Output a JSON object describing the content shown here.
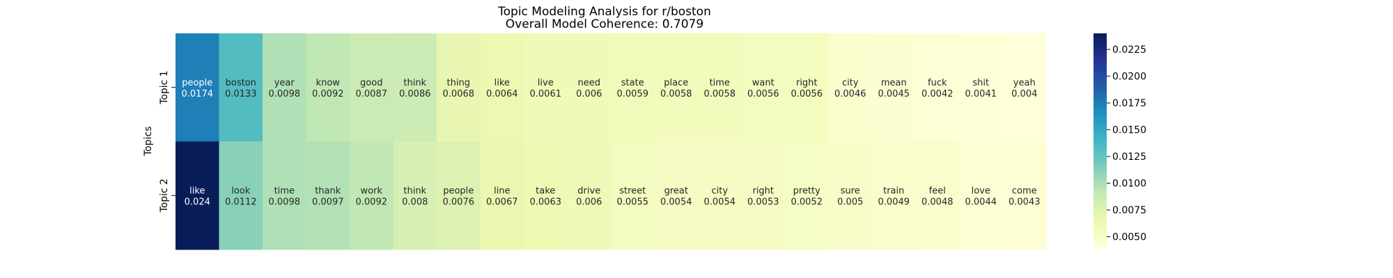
{
  "chart_data": {
    "type": "heatmap",
    "title_line1": "Topic Modeling Analysis for r/boston",
    "title_line2": "Overall Model Coherence: 0.7079",
    "ylabel": "Topics",
    "xlabel": "",
    "row_labels": [
      "Topic 1",
      "Topic 2"
    ],
    "rows": [
      {
        "words": [
          "people",
          "boston",
          "year",
          "know",
          "good",
          "think",
          "thing",
          "like",
          "live",
          "need",
          "state",
          "place",
          "time",
          "want",
          "right",
          "city",
          "mean",
          "fuck",
          "shit",
          "yeah"
        ],
        "weights": [
          0.0174,
          0.0133,
          0.0098,
          0.0092,
          0.0087,
          0.0086,
          0.0068,
          0.0064,
          0.0061,
          0.006,
          0.0059,
          0.0058,
          0.0058,
          0.0056,
          0.0056,
          0.0046,
          0.0045,
          0.0042,
          0.0041,
          0.004
        ]
      },
      {
        "words": [
          "like",
          "look",
          "time",
          "thank",
          "work",
          "think",
          "people",
          "line",
          "take",
          "drive",
          "street",
          "great",
          "city",
          "right",
          "pretty",
          "sure",
          "train",
          "feel",
          "love",
          "come"
        ],
        "weights": [
          0.024,
          0.0112,
          0.0098,
          0.0097,
          0.0092,
          0.008,
          0.0076,
          0.0067,
          0.0063,
          0.006,
          0.0055,
          0.0054,
          0.0054,
          0.0053,
          0.0052,
          0.005,
          0.0049,
          0.0048,
          0.0044,
          0.0043
        ]
      }
    ],
    "colorbar": {
      "colormap": "YlGnBu",
      "vmin": 0.004,
      "vmax": 0.024,
      "ticks": [
        "0.0050",
        "0.0075",
        "0.0100",
        "0.0125",
        "0.0150",
        "0.0175",
        "0.0200",
        "0.0225"
      ]
    },
    "grid": false,
    "legend": "colorbar-right"
  }
}
